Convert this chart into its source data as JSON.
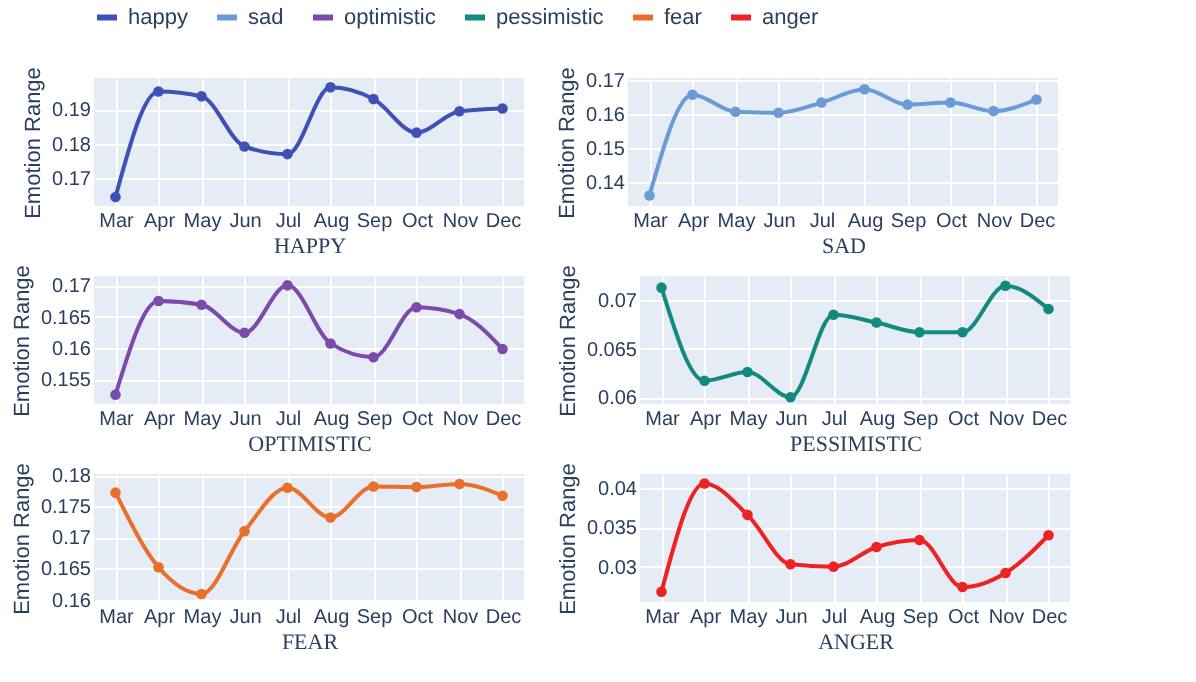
{
  "chart_data": [
    {
      "type": "line",
      "xlabel": "HAPPY",
      "ylabel": "Emotion Range",
      "categories": [
        "Mar",
        "Apr",
        "May",
        "Jun",
        "Jul",
        "Aug",
        "Sep",
        "Oct",
        "Nov",
        "Dec"
      ],
      "series": [
        {
          "name": "happy",
          "color": "#3f51b5",
          "values": [
            0.1646,
            0.1951,
            0.1937,
            0.1792,
            0.177,
            0.1963,
            0.1929,
            0.1832,
            0.1894,
            0.1902
          ]
        }
      ],
      "ylim": [
        0.162,
        0.199
      ],
      "yticks": [
        0.17,
        0.18,
        0.19
      ],
      "grid": true,
      "legend": "top",
      "marker": "circle"
    },
    {
      "type": "line",
      "xlabel": "SAD",
      "ylabel": "Emotion Range",
      "categories": [
        "Mar",
        "Apr",
        "May",
        "Jun",
        "Jul",
        "Aug",
        "Sep",
        "Oct",
        "Nov",
        "Dec"
      ],
      "series": [
        {
          "name": "sad",
          "color": "#6a9ad8",
          "values": [
            0.1361,
            0.1656,
            0.1606,
            0.1603,
            0.1633,
            0.1672,
            0.1627,
            0.1633,
            0.1608,
            0.1642
          ]
        }
      ],
      "ylim": [
        0.133,
        0.1705
      ],
      "yticks": [
        0.14,
        0.15,
        0.16,
        0.17
      ],
      "grid": true,
      "legend": "top",
      "marker": "circle"
    },
    {
      "type": "line",
      "xlabel": "OPTIMISTIC",
      "ylabel": "Emotion Range",
      "categories": [
        "Mar",
        "Apr",
        "May",
        "Jun",
        "Jul",
        "Aug",
        "Sep",
        "Oct",
        "Nov",
        "Dec"
      ],
      "series": [
        {
          "name": "optimistic",
          "color": "#7b4bab",
          "values": [
            0.1525,
            0.1675,
            0.1669,
            0.1624,
            0.17,
            0.1607,
            0.1585,
            0.1665,
            0.1654,
            0.1598
          ]
        }
      ],
      "ylim": [
        0.151,
        0.1715
      ],
      "yticks": [
        0.155,
        0.16,
        0.165,
        0.17
      ],
      "grid": true,
      "legend": "top",
      "marker": "circle"
    },
    {
      "type": "line",
      "xlabel": "PESSIMISTIC",
      "ylabel": "Emotion Range",
      "categories": [
        "Mar",
        "Apr",
        "May",
        "Jun",
        "Jul",
        "Aug",
        "Sep",
        "Oct",
        "Nov",
        "Dec"
      ],
      "series": [
        {
          "name": "pessimistic",
          "color": "#138a80",
          "values": [
            0.0713,
            0.0617,
            0.0626,
            0.06,
            0.0685,
            0.0677,
            0.0667,
            0.0667,
            0.0715,
            0.0691
          ]
        }
      ],
      "ylim": [
        0.0593,
        0.0725
      ],
      "yticks": [
        0.06,
        0.065,
        0.07
      ],
      "grid": true,
      "legend": "top",
      "marker": "circle"
    },
    {
      "type": "line",
      "xlabel": "FEAR",
      "ylabel": "Emotion Range",
      "categories": [
        "Mar",
        "Apr",
        "May",
        "Jun",
        "Jul",
        "Aug",
        "Sep",
        "Oct",
        "Nov",
        "Dec"
      ],
      "series": [
        {
          "name": "fear",
          "color": "#e8702a",
          "values": [
            0.1772,
            0.1652,
            0.1609,
            0.171,
            0.178,
            0.1732,
            0.1782,
            0.1781,
            0.1786,
            0.1767
          ]
        }
      ],
      "ylim": [
        0.1596,
        0.1802
      ],
      "yticks": [
        0.16,
        0.165,
        0.17,
        0.175,
        0.18
      ],
      "grid": true,
      "legend": "top",
      "marker": "circle"
    },
    {
      "type": "line",
      "xlabel": "ANGER",
      "ylabel": "Emotion Range",
      "categories": [
        "Mar",
        "Apr",
        "May",
        "Jun",
        "Jul",
        "Aug",
        "Sep",
        "Oct",
        "Nov",
        "Dec"
      ],
      "series": [
        {
          "name": "anger",
          "color": "#ee2222",
          "values": [
            0.0268,
            0.0406,
            0.0366,
            0.0303,
            0.03,
            0.0325,
            0.0334,
            0.0274,
            0.0292,
            0.034
          ]
        }
      ],
      "ylim": [
        0.0255,
        0.0418
      ],
      "yticks": [
        0.03,
        0.035,
        0.04
      ],
      "grid": true,
      "legend": "top",
      "marker": "circle"
    }
  ]
}
